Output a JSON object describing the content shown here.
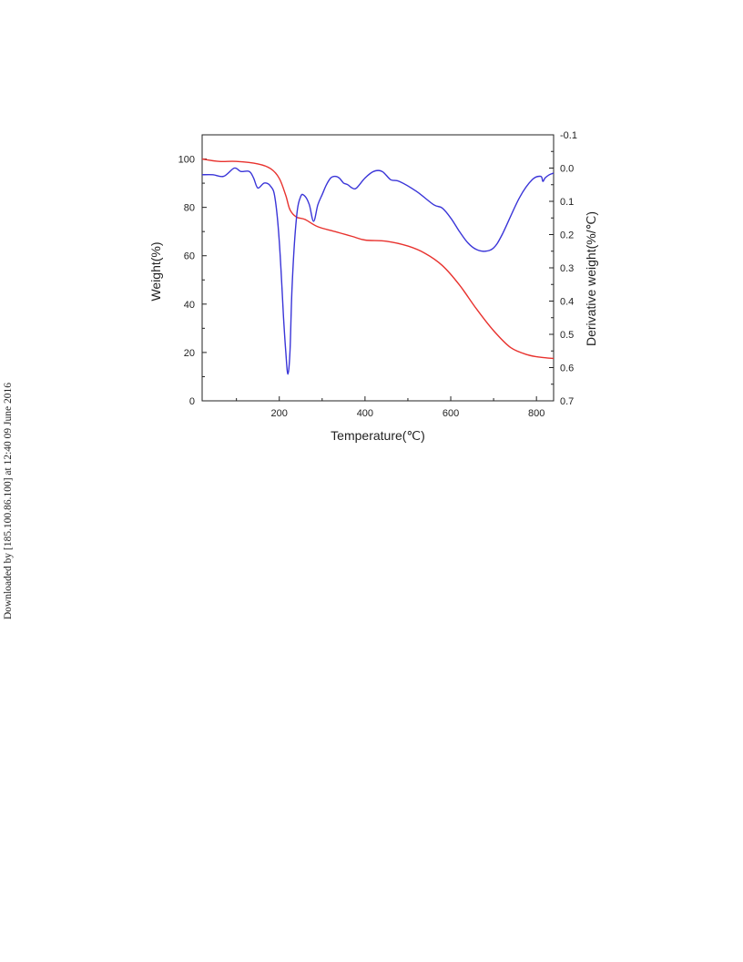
{
  "side_note": "Downloaded by [185.100.86.100] at 12:40 09 June 2016",
  "chart_data": {
    "type": "line",
    "title": "",
    "xlabel": "Temperature(℃)",
    "ylabel": "Weight(%)",
    "y2label": "Derivative weight(%/℃)",
    "xlim": [
      20,
      840
    ],
    "ylim": [
      0,
      110
    ],
    "y2lim": [
      -0.1,
      0.7
    ],
    "y2_inverted": true,
    "xticks": [
      200,
      400,
      600,
      800
    ],
    "yticks": [
      0,
      20,
      40,
      60,
      80,
      100
    ],
    "y2ticks": [
      -0.1,
      0.0,
      0.1,
      0.2,
      0.3,
      0.4,
      0.5,
      0.6,
      0.7
    ],
    "y2tick_labels": [
      "-0.1",
      "0.0",
      "0.1",
      "0.2",
      "0.3",
      "0.4",
      "0.5",
      "0.6",
      "0.7"
    ],
    "grid": false,
    "legend": "none",
    "series": [
      {
        "axis": "left",
        "color": "#e8322e",
        "x": [
          20,
          60,
          100,
          150,
          180,
          200,
          215,
          225,
          240,
          260,
          290,
          330,
          370,
          400,
          450,
          500,
          540,
          580,
          620,
          660,
          700,
          740,
          780,
          810,
          840
        ],
        "y": [
          100,
          99,
          99,
          98,
          96,
          92,
          85,
          79,
          76,
          75,
          72,
          70,
          68,
          66.5,
          66,
          64,
          61,
          56,
          48,
          38,
          29,
          22,
          19,
          18,
          17.5
        ]
      },
      {
        "axis": "right",
        "color": "#3a35d8",
        "x": [
          20,
          45,
          70,
          95,
          110,
          130,
          140,
          150,
          165,
          180,
          190,
          200,
          210,
          215,
          220,
          225,
          230,
          240,
          250,
          260,
          270,
          280,
          290,
          300,
          310,
          320,
          330,
          340,
          350,
          360,
          370,
          380,
          400,
          420,
          440,
          460,
          480,
          520,
          560,
          580,
          600,
          620,
          640,
          660,
          680,
          700,
          720,
          760,
          790,
          810,
          815,
          820,
          830,
          840
        ],
        "y": [
          0.02,
          0.02,
          0.025,
          0.0,
          0.01,
          0.01,
          0.03,
          0.06,
          0.045,
          0.055,
          0.09,
          0.22,
          0.45,
          0.55,
          0.62,
          0.55,
          0.35,
          0.15,
          0.085,
          0.085,
          0.11,
          0.16,
          0.11,
          0.08,
          0.05,
          0.03,
          0.025,
          0.03,
          0.045,
          0.05,
          0.06,
          0.06,
          0.03,
          0.01,
          0.01,
          0.035,
          0.04,
          0.07,
          0.11,
          0.12,
          0.15,
          0.19,
          0.225,
          0.245,
          0.25,
          0.24,
          0.2,
          0.09,
          0.035,
          0.025,
          0.04,
          0.03,
          0.02,
          0.015
        ]
      }
    ]
  }
}
